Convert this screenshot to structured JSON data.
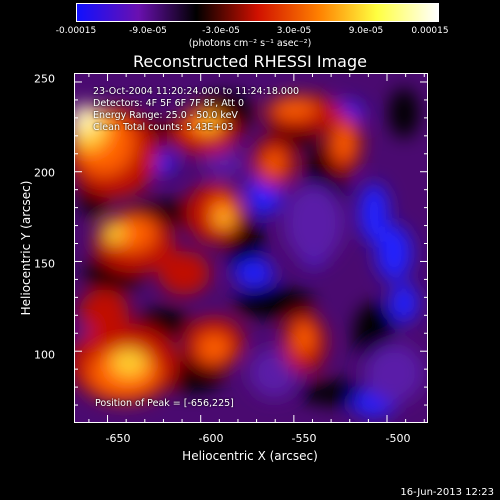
{
  "colorbar": {
    "ticks": [
      "-0.00015",
      "-9.0e-05",
      "-3.0e-05",
      "3.0e-05",
      "9.0e-05",
      "0.00015"
    ],
    "units": "(photons cm⁻² s⁻¹ asec⁻²)",
    "colors": [
      "#1010ff",
      "#6a10b0",
      "#000000",
      "#d01000",
      "#ff8000",
      "#ffff40",
      "#ffffff"
    ]
  },
  "chart_data": {
    "type": "heatmap",
    "title": "Reconstructed RHESSI Image",
    "xlabel": "Heliocentric X (arcsec)",
    "ylabel": "Heliocentric Y (arcsec)",
    "xlim": [
      -668,
      -478
    ],
    "ylim": [
      60,
      255
    ],
    "xticks": [
      "-650",
      "-600",
      "-550",
      "-500"
    ],
    "yticks": [
      "100",
      "150",
      "200",
      "250"
    ],
    "zlim": [
      -0.00015,
      0.00015
    ],
    "peak": [
      -656,
      225
    ],
    "annotations": [
      "23-Oct-2004 11:20:24.000 to 11:24:18.000",
      "Detectors: 4F 5F 6F 7F 8F, Att 0",
      "Energy Range: 25.0 - 50.0 keV",
      "Clean    Total counts: 5.43E+03",
      "Position of Peak = [-656,225]"
    ]
  },
  "footer": "16-Jun-2013 12:23"
}
